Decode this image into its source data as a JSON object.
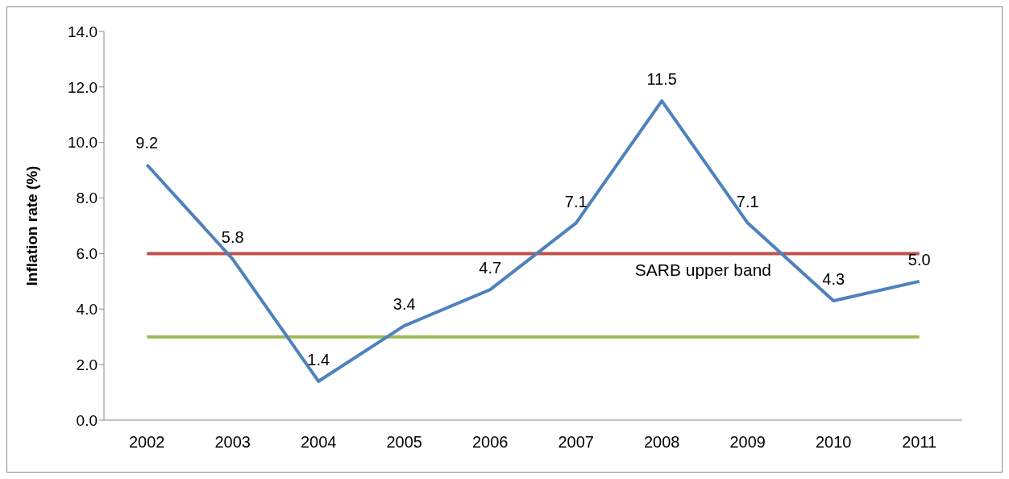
{
  "chart_data": {
    "type": "line",
    "ylabel": "Inflation rate (%)",
    "categories": [
      "2002",
      "2003",
      "2004",
      "2005",
      "2006",
      "2007",
      "2008",
      "2009",
      "2010",
      "2011"
    ],
    "series": [
      {
        "color": "#4f81bd",
        "values": [
          9.2,
          5.8,
          1.4,
          3.4,
          4.7,
          7.1,
          11.5,
          7.1,
          4.3,
          5.0
        ],
        "value_labels": [
          "9.2",
          "5.8",
          "1.4",
          "3.4",
          "4.7",
          "7.1",
          "11.5",
          "7.1",
          "4.3",
          "5.0"
        ]
      }
    ],
    "ylim": [
      0,
      14
    ],
    "yticks": [
      {
        "value": 0,
        "label": "0.0"
      },
      {
        "value": 2,
        "label": "2.0"
      },
      {
        "value": 4,
        "label": "4.0"
      },
      {
        "value": 6,
        "label": "6.0"
      },
      {
        "value": 8,
        "label": "8.0"
      },
      {
        "value": 10,
        "label": "10.0"
      },
      {
        "value": 12,
        "label": "12.0"
      },
      {
        "value": 14,
        "label": "14.0"
      }
    ],
    "ref_lines": [
      {
        "axis": "y",
        "value": 6,
        "label": "SARB upper band",
        "color": "#c0504d"
      },
      {
        "axis": "y",
        "value": 3,
        "color": "#9bbb59"
      }
    ],
    "grid": false,
    "legend": false,
    "marker": "none"
  }
}
